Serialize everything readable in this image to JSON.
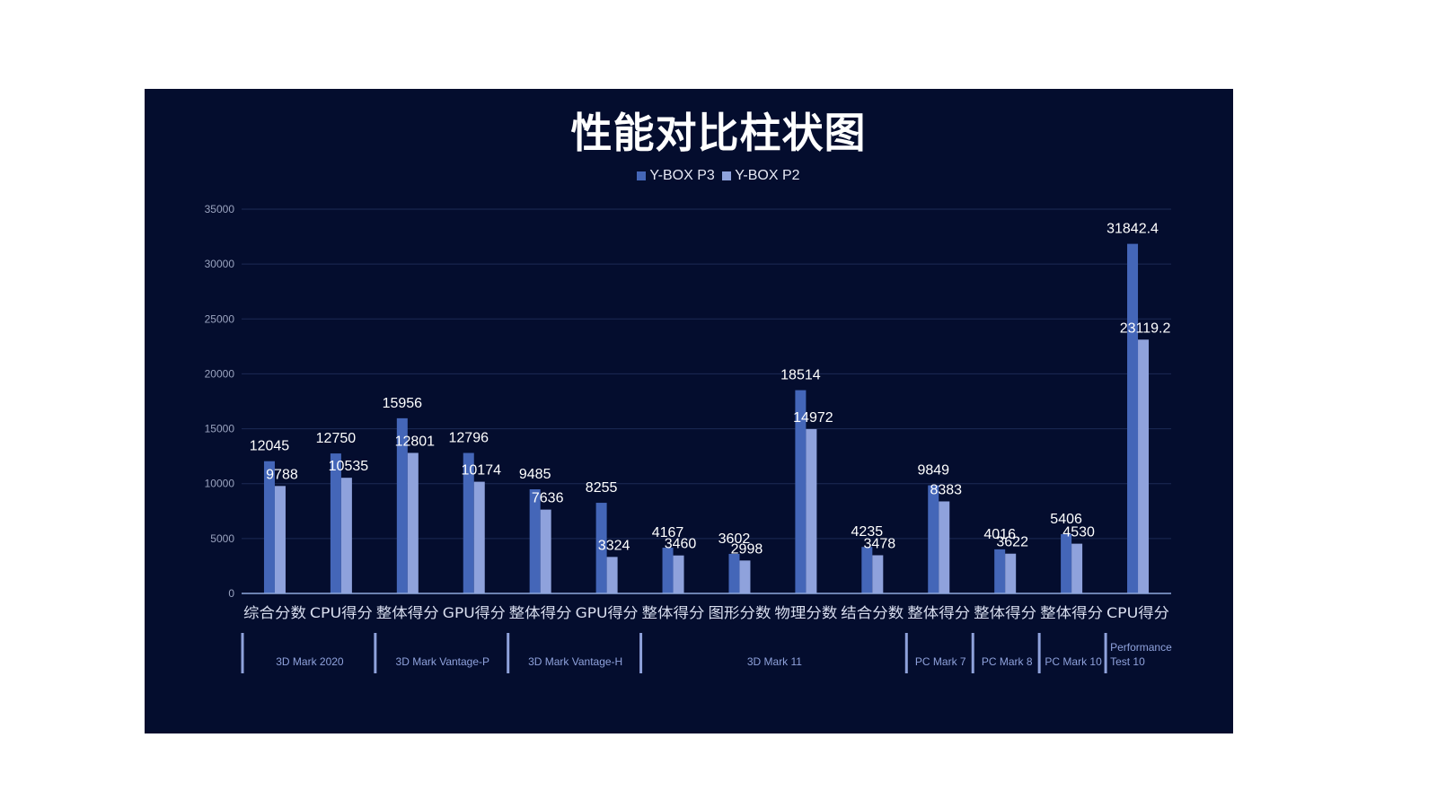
{
  "chart_data": {
    "type": "bar",
    "title": "性能对比柱状图",
    "categories": [
      "综合分数",
      "CPU得分",
      "整体得分",
      "GPU得分",
      "整体得分",
      "GPU得分",
      "整体得分",
      "图形分数",
      "物理分数",
      "结合分数",
      "整体得分",
      "整体得分",
      "整体得分",
      "CPU得分"
    ],
    "groups": [
      {
        "label": "3D Mark 2020",
        "count": 2
      },
      {
        "label": "3D Mark  Vantage-P",
        "count": 2
      },
      {
        "label": "3D Mark  Vantage-H",
        "count": 2
      },
      {
        "label": "3D Mark 11",
        "count": 4
      },
      {
        "label": "PC Mark 7",
        "count": 1
      },
      {
        "label": "PC Mark 8",
        "count": 1
      },
      {
        "label": "PC Mark 10",
        "count": 1
      },
      {
        "label": "Performance Test 10",
        "count": 1
      }
    ],
    "series": [
      {
        "name": "Y-BOX P3",
        "color": "#4466b8",
        "values": [
          12045,
          12750,
          15956,
          12796,
          9485,
          8255,
          4167,
          3602,
          18514,
          4235,
          9849,
          4016,
          5406,
          31842.4
        ]
      },
      {
        "name": "Y-BOX P2",
        "color": "#8fa2dc",
        "values": [
          9788,
          10535,
          12801,
          10174,
          7636,
          3324,
          3460,
          2998,
          14972,
          3478,
          8383,
          3622,
          4530,
          23119.2
        ]
      }
    ],
    "ylim": [
      0,
      35000
    ],
    "yticks": [
      0,
      5000,
      10000,
      15000,
      20000,
      25000,
      30000,
      35000
    ],
    "grid": true,
    "legend": "top",
    "background": "#040d2e"
  }
}
